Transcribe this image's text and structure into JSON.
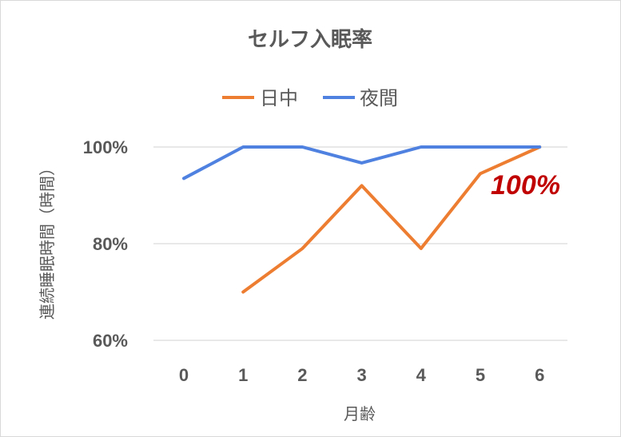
{
  "chart_data": {
    "type": "line",
    "title": "セルフ入眠率",
    "xlabel": "月齢",
    "ylabel": "連続睡眠時間（時間）",
    "categories": [
      "0",
      "1",
      "2",
      "3",
      "4",
      "5",
      "6"
    ],
    "y_ticks": [
      "60%",
      "80%",
      "100%"
    ],
    "ylim": [
      60,
      100
    ],
    "grid": true,
    "legend_position": "top",
    "series": [
      {
        "name": "日中",
        "color": "#ed7d31",
        "values": [
          null,
          70,
          79,
          92,
          79,
          94.5,
          100
        ]
      },
      {
        "name": "夜間",
        "color": "#4f81e0",
        "values": [
          93.5,
          100,
          100,
          96.7,
          100,
          100,
          100
        ]
      }
    ],
    "annotation": {
      "text": "100%",
      "color": "#c00000"
    }
  }
}
